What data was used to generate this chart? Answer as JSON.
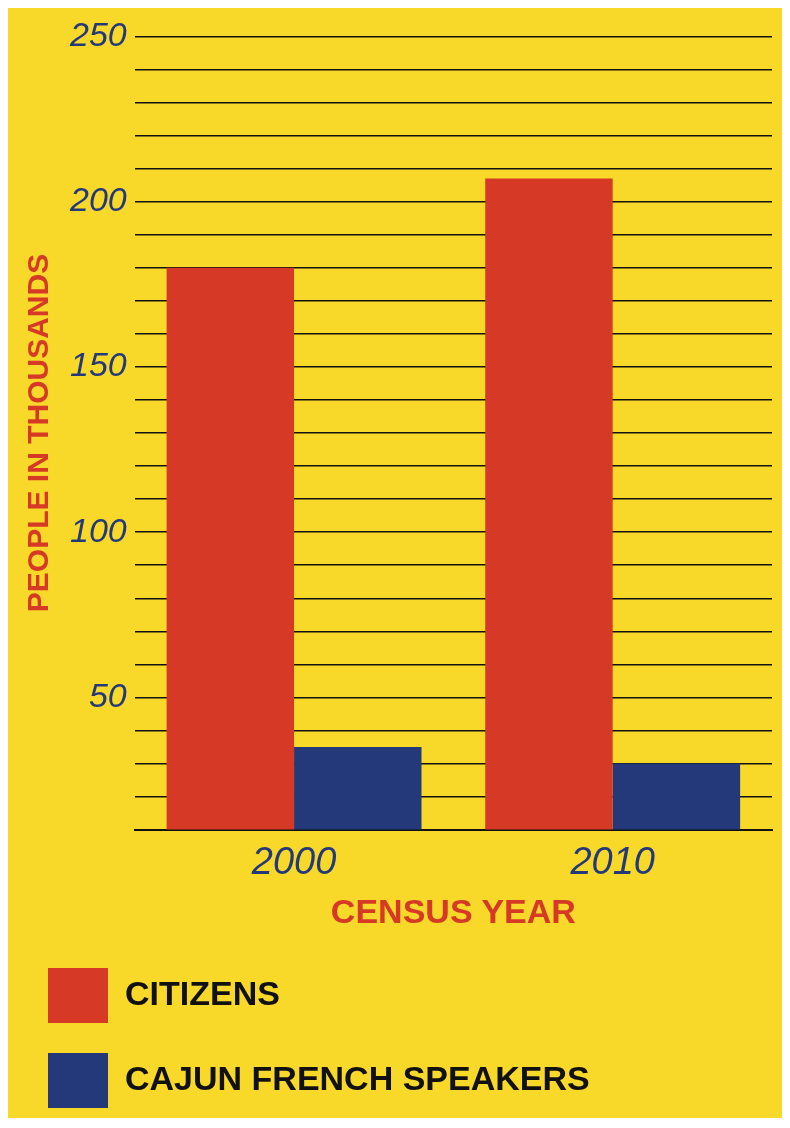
{
  "chart_data": {
    "type": "bar",
    "xlabel": "CENSUS YEAR",
    "ylabel": "PEOPLE IN THOUSANDS",
    "categories": [
      "2000",
      "2010"
    ],
    "series": [
      {
        "name": "CITIZENS",
        "color": "#d63a26",
        "values": [
          180,
          207
        ]
      },
      {
        "name": "CAJUN FRENCH SPEAKERS",
        "color": "#24397a",
        "values": [
          35,
          30
        ]
      }
    ],
    "ylim": [
      10,
      250
    ],
    "yticks": [
      {
        "value": 10,
        "label": null
      },
      {
        "value": 20,
        "label": null
      },
      {
        "value": 30,
        "label": null
      },
      {
        "value": 40,
        "label": null
      },
      50,
      {
        "value": 60,
        "label": null
      },
      {
        "value": 70,
        "label": null
      },
      {
        "value": 80,
        "label": null
      },
      {
        "value": 90,
        "label": null
      },
      100,
      {
        "value": 110,
        "label": null
      },
      {
        "value": 120,
        "label": null
      },
      {
        "value": 130,
        "label": null
      },
      {
        "value": 140,
        "label": null
      },
      150,
      {
        "value": 160,
        "label": null
      },
      {
        "value": 170,
        "label": null
      },
      {
        "value": 180,
        "label": null
      },
      {
        "value": 190,
        "label": null
      },
      200,
      {
        "value": 210,
        "label": null
      },
      {
        "value": 220,
        "label": null
      },
      {
        "value": 230,
        "label": null
      },
      {
        "value": 240,
        "label": null
      },
      250
    ],
    "grid": "y",
    "legend": "bottom"
  }
}
